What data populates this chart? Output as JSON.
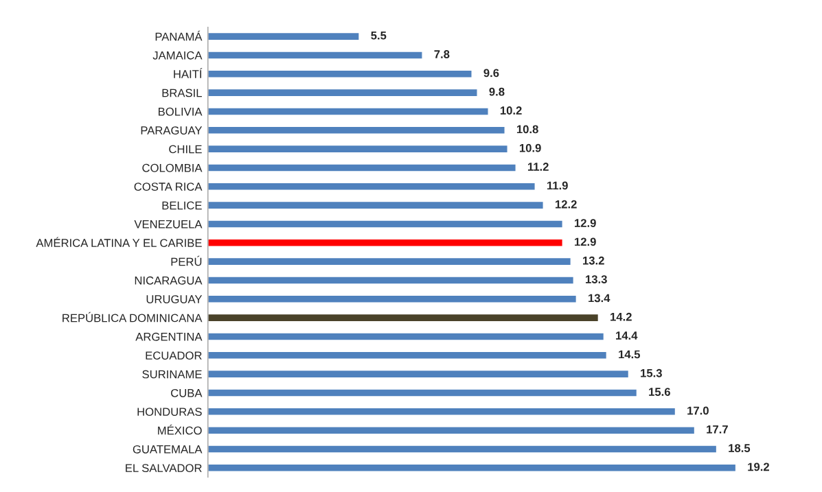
{
  "chart_data": {
    "type": "bar",
    "orientation": "horizontal",
    "data_labels": true,
    "grid": false,
    "legend": false,
    "tick_labels": "y",
    "categories": [
      "PANAMÁ",
      "JAMAICA",
      "HAITÍ",
      "BRASIL",
      "BOLIVIA",
      "PARAGUAY",
      "CHILE",
      "COLOMBIA",
      "COSTA RICA",
      "BELICE",
      "VENEZUELA",
      "AMÉRICA LATINA Y EL CARIBE",
      "PERÚ",
      "NICARAGUA",
      "URUGUAY",
      "REPÚBLICA DOMINICANA",
      "ARGENTINA",
      "ECUADOR",
      "SURINAME",
      "CUBA",
      "HONDURAS",
      "MÉXICO",
      "GUATEMALA",
      "EL SALVADOR"
    ],
    "values": [
      5.5,
      7.8,
      9.6,
      9.8,
      10.2,
      10.8,
      10.9,
      11.2,
      11.9,
      12.2,
      12.9,
      12.9,
      13.2,
      13.3,
      13.4,
      14.2,
      14.4,
      14.5,
      15.3,
      15.6,
      17.0,
      17.7,
      18.5,
      19.2
    ],
    "value_labels": [
      "5.5",
      "7.8",
      "9.6",
      "9.8",
      "10.2",
      "10.8",
      "10.9",
      "11.2",
      "11.9",
      "12.2",
      "12.9",
      "12.9",
      "13.2",
      "13.3",
      "13.4",
      "14.2",
      "14.4",
      "14.5",
      "15.3",
      "15.6",
      "17.0",
      "17.7",
      "18.5",
      "19.2"
    ],
    "colors": [
      "#4f81bd",
      "#4f81bd",
      "#4f81bd",
      "#4f81bd",
      "#4f81bd",
      "#4f81bd",
      "#4f81bd",
      "#4f81bd",
      "#4f81bd",
      "#4f81bd",
      "#4f81bd",
      "#ff0000",
      "#4f81bd",
      "#4f81bd",
      "#4f81bd",
      "#4a4229",
      "#4f81bd",
      "#4f81bd",
      "#4f81bd",
      "#4f81bd",
      "#4f81bd",
      "#4f81bd",
      "#4f81bd",
      "#4f81bd"
    ]
  }
}
